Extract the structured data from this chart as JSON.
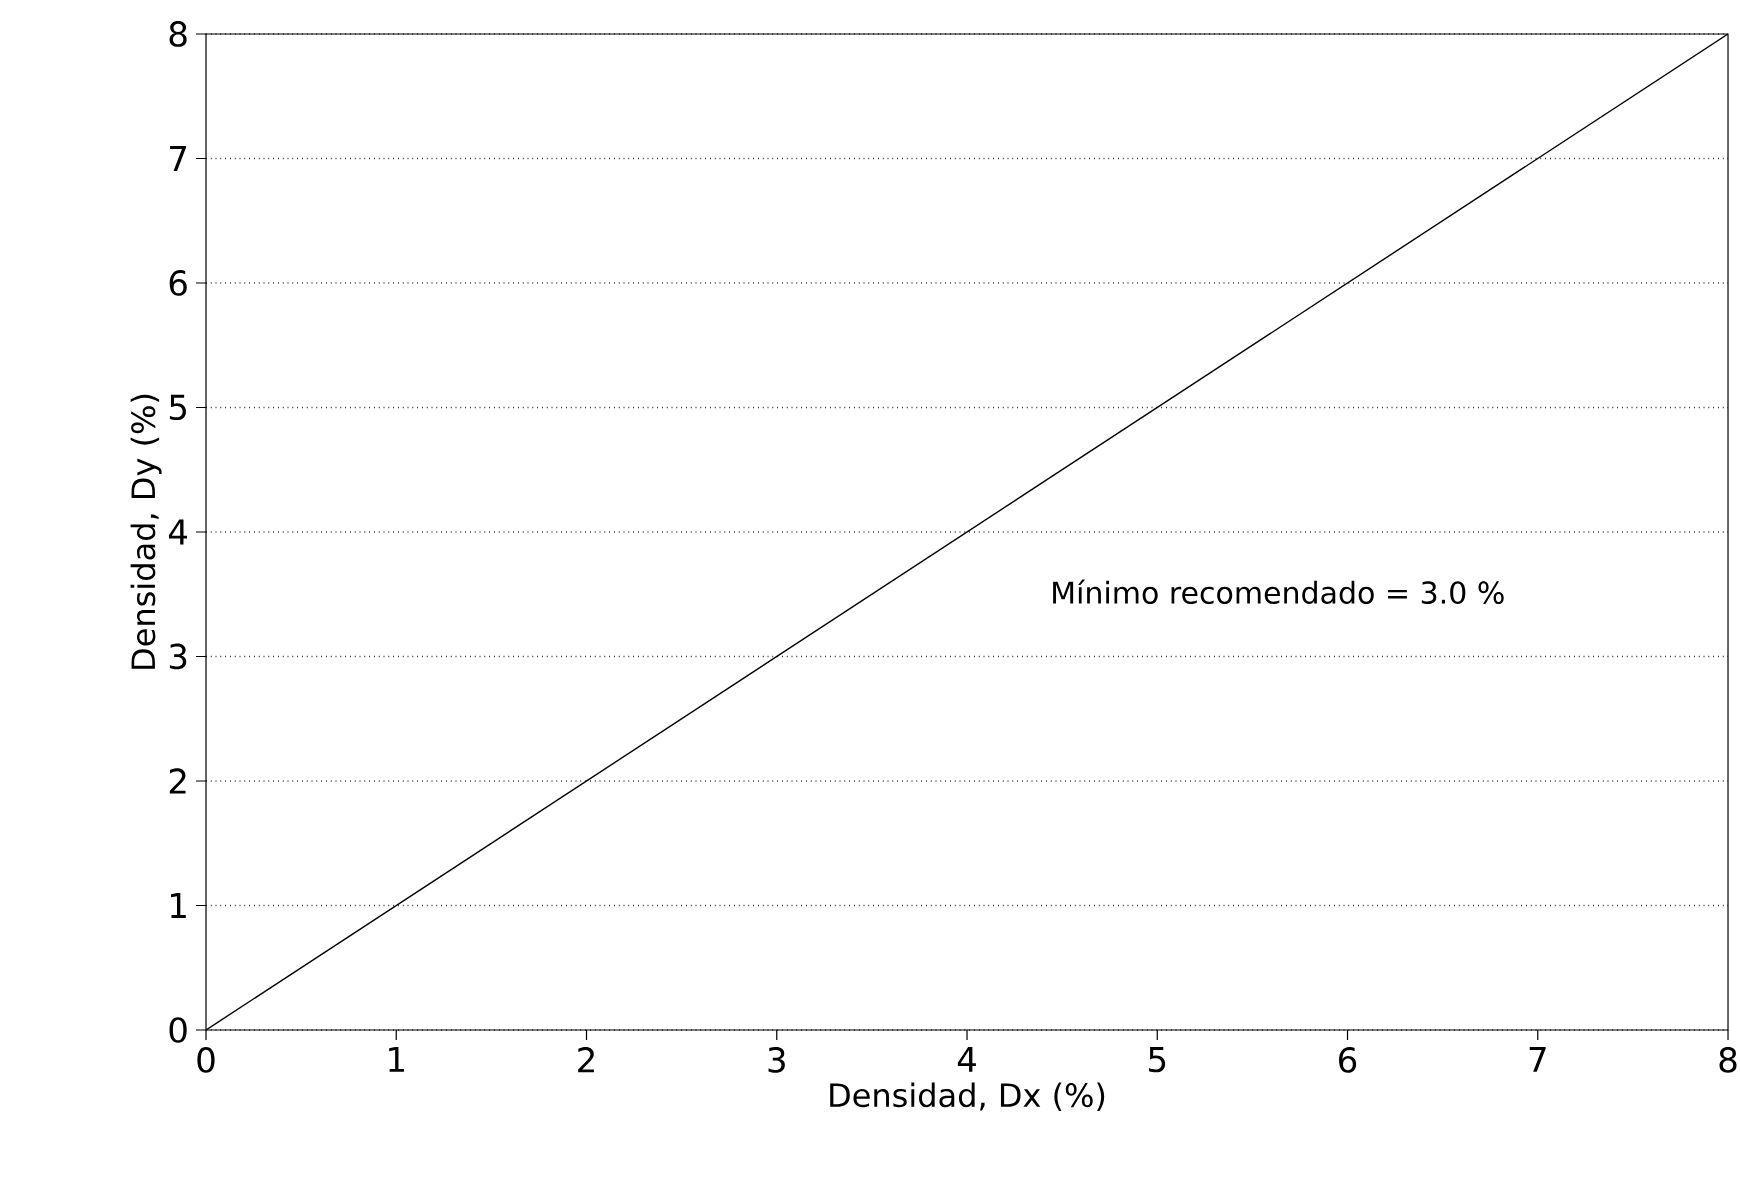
{
  "chart_data": {
    "type": "line",
    "xlabel": "Densidad, Dx (%)",
    "ylabel": "Densidad, Dy (%)",
    "x": [
      0,
      8
    ],
    "series": [
      {
        "color": "#000000",
        "values": [
          0,
          8
        ]
      }
    ],
    "xlim": [
      0,
      8
    ],
    "ylim": [
      0,
      8
    ],
    "xticks": [
      0,
      1,
      2,
      3,
      4,
      5,
      6,
      7,
      8
    ],
    "yticks": [
      0,
      1,
      2,
      3,
      4,
      5,
      6,
      7,
      8
    ],
    "grid": "y",
    "marker": "none",
    "line_style": "solid",
    "annotations": [
      "Mínimo recomendado = 3.0 %"
    ]
  }
}
